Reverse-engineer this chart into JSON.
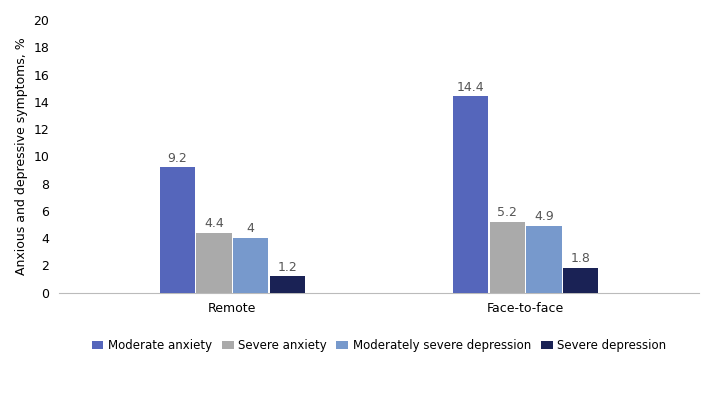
{
  "categories": [
    "Remote",
    "Face-to-face"
  ],
  "series": [
    {
      "label": "Moderate anxiety",
      "values": [
        9.2,
        14.4
      ],
      "color": "#5566bb"
    },
    {
      "label": "Severe anxiety",
      "values": [
        4.4,
        5.2
      ],
      "color": "#aaaaaa"
    },
    {
      "label": "Moderately severe depression",
      "values": [
        4.0,
        4.9
      ],
      "color": "#7799cc"
    },
    {
      "label": "Severe depression",
      "values": [
        1.2,
        1.8
      ],
      "color": "#1a2255"
    }
  ],
  "ylabel": "Anxious and depressive symptoms, %",
  "ylim": [
    0,
    20
  ],
  "yticks": [
    0,
    2,
    4,
    6,
    8,
    10,
    12,
    14,
    16,
    18,
    20
  ],
  "bar_width": 0.12,
  "figsize": [
    7.25,
    4.15
  ],
  "dpi": 100,
  "label_fontsize": 9,
  "tick_fontsize": 9,
  "legend_fontsize": 8.5,
  "value_label_color": "#555555"
}
